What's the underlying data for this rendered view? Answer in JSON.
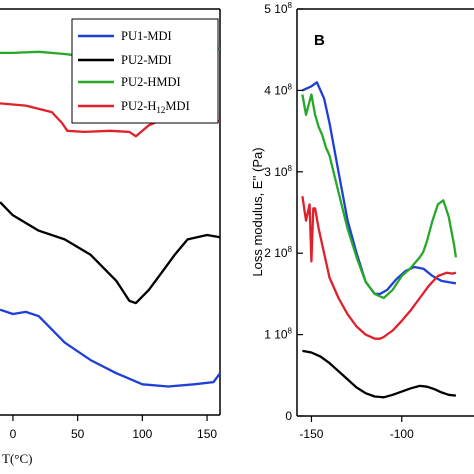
{
  "chart_data": [
    {
      "panel": "A",
      "type": "line",
      "xlabel": "T(°C)",
      "x_ticks": [
        "0",
        "50",
        "100",
        "150"
      ],
      "xlim": [
        -10,
        160
      ],
      "legend": {
        "placement": "top-right",
        "entries": [
          {
            "text": "PU1-MDI",
            "color": "#1f3fd6"
          },
          {
            "text": "PU2-MDI",
            "color": "#000000"
          },
          {
            "text": "PU2-HMDI",
            "color": "#28a828"
          },
          {
            "text": "PU2-H",
            "sub": "12",
            "text2": "MDI",
            "color": "#e0202a"
          }
        ]
      },
      "series": [
        {
          "name": "PU2-HMDI",
          "color": "#28a828",
          "x": [
            -10,
            0,
            20,
            40,
            60,
            80,
            100,
            120,
            140,
            160
          ],
          "y": [
            0.8,
            0.8,
            0.805,
            0.795,
            0.78,
            0.77,
            0.785,
            0.81,
            0.815,
            0.82
          ]
        },
        {
          "name": "PU2-H12MDI",
          "color": "#e0202a",
          "x": [
            -10,
            10,
            30,
            38,
            42,
            55,
            75,
            90,
            95,
            105,
            115,
            130,
            145,
            160
          ],
          "y": [
            0.57,
            0.56,
            0.53,
            0.48,
            0.445,
            0.44,
            0.445,
            0.44,
            0.42,
            0.47,
            0.495,
            0.5,
            0.495,
            0.49
          ]
        },
        {
          "name": "PU2-MDI",
          "color": "#000000",
          "x": [
            -10,
            0,
            20,
            40,
            60,
            80,
            90,
            95,
            105,
            115,
            125,
            135,
            150,
            160
          ],
          "y": [
            0.12,
            0.06,
            -0.01,
            -0.05,
            -0.12,
            -0.24,
            -0.33,
            -0.34,
            -0.28,
            -0.2,
            -0.12,
            -0.05,
            -0.03,
            -0.04
          ]
        },
        {
          "name": "PU1-MDI",
          "color": "#1f3fd6",
          "x": [
            -10,
            0,
            10,
            20,
            40,
            60,
            80,
            100,
            120,
            140,
            155,
            160
          ],
          "y": [
            -0.37,
            -0.39,
            -0.38,
            -0.4,
            -0.52,
            -0.6,
            -0.66,
            -0.71,
            -0.72,
            -0.71,
            -0.7,
            -0.66
          ]
        }
      ]
    },
    {
      "panel": "B",
      "type": "line",
      "ylabel": "Loss modulus, E'' (Pa)",
      "y_ticks": [
        "0",
        "1 10^8",
        "2 10^8",
        "3 10^8",
        "4 10^8",
        "5 10^8"
      ],
      "y_tick_values": [
        0,
        1,
        2,
        3,
        4,
        5
      ],
      "x_ticks": [
        "-150",
        "-100"
      ],
      "x_tick_values": [
        -150,
        -100
      ],
      "xlim": [
        -158,
        -60
      ],
      "ylim": [
        0,
        5
      ],
      "y_unit_exponent": "8",
      "series": [
        {
          "name": "PU1-MDI",
          "color": "#1f3fd6",
          "x": [
            -155,
            -150,
            -147,
            -143,
            -140,
            -135,
            -130,
            -125,
            -120,
            -115,
            -112,
            -108,
            -103,
            -98,
            -93,
            -88,
            -83,
            -78,
            -73,
            -70
          ],
          "y": [
            4.0,
            4.05,
            4.1,
            3.9,
            3.6,
            3.0,
            2.4,
            2.0,
            1.65,
            1.5,
            1.5,
            1.55,
            1.68,
            1.78,
            1.83,
            1.81,
            1.72,
            1.66,
            1.64,
            1.63
          ]
        },
        {
          "name": "PU2-HMDI",
          "color": "#28a828",
          "x": [
            -155,
            -153,
            -150,
            -148,
            -146,
            -144,
            -142,
            -140,
            -135,
            -130,
            -125,
            -120,
            -115,
            -110,
            -105,
            -100,
            -95,
            -90,
            -88,
            -86,
            -83,
            -80,
            -77,
            -74,
            -71,
            -70
          ],
          "y": [
            3.95,
            3.7,
            3.95,
            3.7,
            3.55,
            3.45,
            3.3,
            3.2,
            2.75,
            2.3,
            1.95,
            1.65,
            1.5,
            1.45,
            1.55,
            1.72,
            1.82,
            1.95,
            2.02,
            2.15,
            2.4,
            2.6,
            2.65,
            2.45,
            2.1,
            1.95
          ]
        },
        {
          "name": "PU2-H12MDI",
          "color": "#e0202a",
          "x": [
            -155,
            -153,
            -151,
            -150,
            -149,
            -148,
            -146,
            -144,
            -142,
            -140,
            -135,
            -130,
            -125,
            -120,
            -115,
            -112,
            -110,
            -105,
            -100,
            -95,
            -90,
            -85,
            -80,
            -75,
            -72,
            -70
          ],
          "y": [
            2.7,
            2.4,
            2.6,
            1.9,
            2.55,
            2.55,
            2.3,
            2.1,
            1.9,
            1.7,
            1.45,
            1.25,
            1.1,
            1.0,
            0.95,
            0.95,
            0.97,
            1.05,
            1.17,
            1.3,
            1.45,
            1.6,
            1.72,
            1.76,
            1.75,
            1.76
          ]
        },
        {
          "name": "PU2-MDI",
          "color": "#000000",
          "x": [
            -155,
            -150,
            -145,
            -140,
            -135,
            -130,
            -125,
            -120,
            -115,
            -110,
            -105,
            -100,
            -95,
            -90,
            -86,
            -82,
            -78,
            -74,
            -70
          ],
          "y": [
            0.8,
            0.78,
            0.73,
            0.65,
            0.55,
            0.45,
            0.35,
            0.28,
            0.24,
            0.23,
            0.26,
            0.3,
            0.34,
            0.37,
            0.36,
            0.33,
            0.29,
            0.26,
            0.25
          ]
        }
      ]
    }
  ],
  "panel_b_label": "B",
  "panel_a_xlabel": "T(°C)"
}
